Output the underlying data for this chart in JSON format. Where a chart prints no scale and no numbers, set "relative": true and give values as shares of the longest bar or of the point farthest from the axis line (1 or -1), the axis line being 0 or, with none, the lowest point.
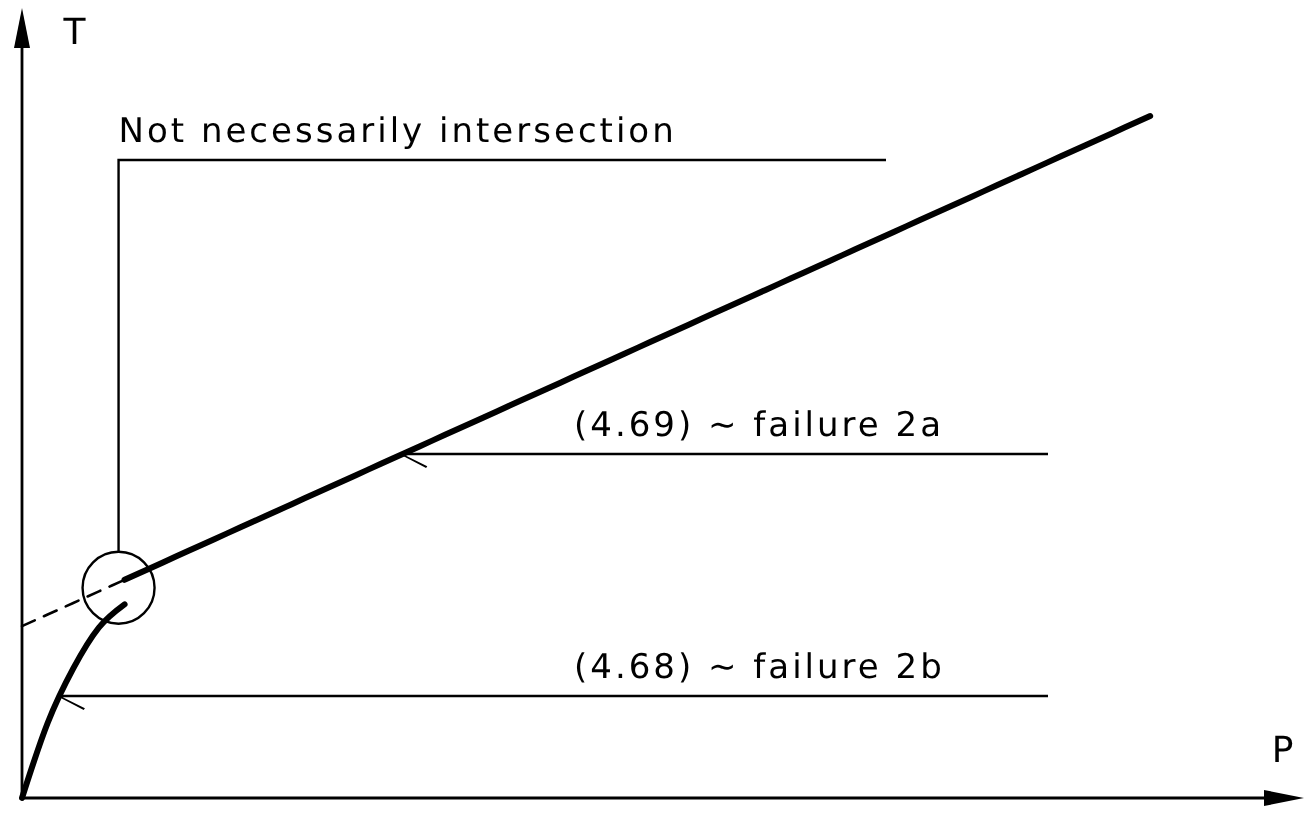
{
  "chart_data": {
    "type": "line",
    "relative": true,
    "xlabel": "P",
    "ylabel": "T",
    "categories": [
      null,
      null,
      null,
      null,
      null,
      null,
      null,
      null,
      null,
      null,
      null,
      null,
      null,
      null,
      null,
      null,
      null,
      null,
      null,
      null,
      null,
      null,
      null,
      null,
      null,
      null,
      null,
      null,
      null,
      null,
      null,
      null,
      null,
      null,
      null,
      null,
      null,
      null,
      null,
      null,
      null,
      null,
      null,
      null,
      null,
      null,
      null,
      null,
      null,
      null,
      null
    ],
    "series": [
      {
        "color": "#000000",
        "line_style": "solid",
        "values": [
          null,
          null,
          null,
          null,
          0.32,
          0.337,
          0.354,
          0.371,
          0.388,
          0.405,
          0.422,
          0.439,
          0.456,
          0.473,
          0.49,
          0.507,
          0.524,
          0.541,
          0.558,
          0.575,
          0.592,
          0.609,
          0.626,
          0.643,
          0.66,
          0.677,
          0.694,
          0.711,
          0.728,
          0.745,
          0.762,
          0.779,
          0.796,
          0.813,
          0.83,
          0.847,
          0.864,
          0.881,
          0.898,
          0.915,
          0.932,
          0.949,
          0.966,
          0.983,
          1,
          null,
          null,
          null,
          null,
          null,
          null
        ]
      },
      {
        "color": "#000000",
        "line_style": "dashed",
        "values": [
          0.252,
          0.269,
          0.286,
          0.303,
          0.32,
          null,
          null,
          null,
          null,
          null,
          null,
          null,
          null,
          null,
          null,
          null,
          null,
          null,
          null,
          null,
          null,
          null,
          null,
          null,
          null,
          null,
          null,
          null,
          null,
          null,
          null,
          null,
          null,
          null,
          null,
          null,
          null,
          null,
          null,
          null,
          null,
          null,
          null,
          null,
          null,
          null,
          null,
          null,
          null,
          null,
          null
        ]
      },
      {
        "color": "#000000",
        "line_style": "solid",
        "values": [
          0,
          0.11,
          0.19,
          0.25,
          0.284,
          null,
          null,
          null,
          null,
          null,
          null,
          null,
          null,
          null,
          null,
          null,
          null,
          null,
          null,
          null,
          null,
          null,
          null,
          null,
          null,
          null,
          null,
          null,
          null,
          null,
          null,
          null,
          null,
          null,
          null,
          null,
          null,
          null,
          null,
          null,
          null,
          null,
          null,
          null,
          null,
          null,
          null,
          null,
          null,
          null,
          null
        ]
      }
    ],
    "annotations": [
      "Not necessarily intersection",
      "(4.69) ~ failure 2a",
      "(4.68) ~ failure 2b"
    ]
  }
}
